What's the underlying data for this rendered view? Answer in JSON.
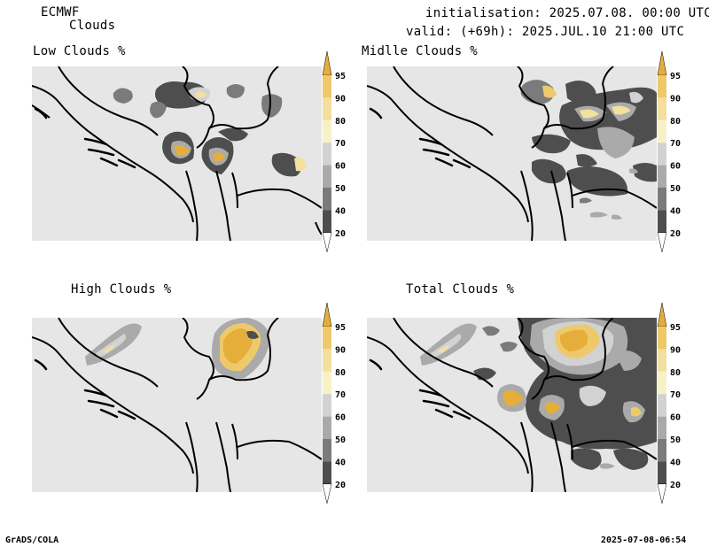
{
  "header": {
    "model": "ECMWF",
    "product": "Clouds",
    "init_line": "initialisation: 2025.07.08. 00:00 UTC",
    "valid_line": "valid: (+69h): 2025.JUL.10 21:00 UTC"
  },
  "panels": [
    {
      "title": "Low Clouds %"
    },
    {
      "title": "Midlle Clouds %"
    },
    {
      "title": "High Clouds %"
    },
    {
      "title": "Total Clouds %"
    }
  ],
  "colorbar": {
    "levels": [
      "95",
      "90",
      "80",
      "70",
      "60",
      "50",
      "40",
      "20"
    ],
    "colors": [
      "#e5ae3a",
      "#edc96a",
      "#f3df9e",
      "#f7f2c6",
      "#d2d2d2",
      "#aaaaaa",
      "#7b7b7b",
      "#4e4e4e",
      "#ffffff"
    ]
  },
  "footer": {
    "left": "GrADS/COLA",
    "right": "2025-07-08-06:54"
  }
}
